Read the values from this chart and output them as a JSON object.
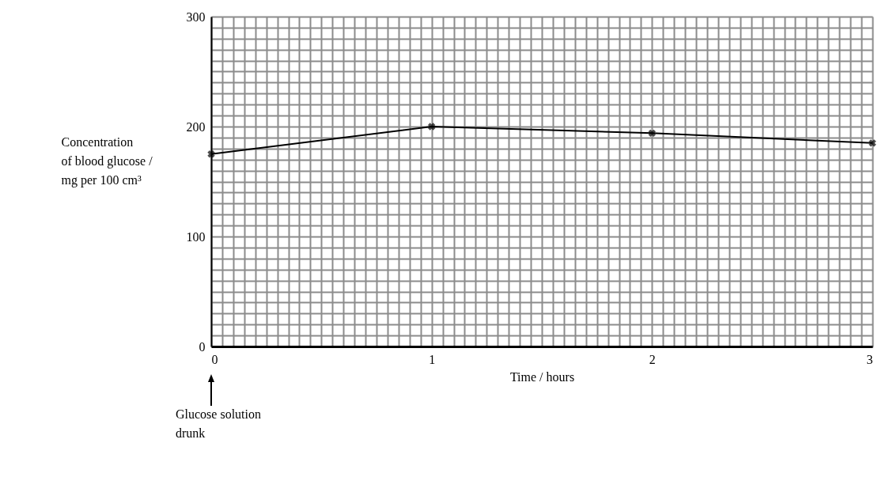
{
  "chart_data": {
    "type": "line",
    "xlabel": "Time / hours",
    "ylabel": "Concentration\nof blood glucose /\nmg per 100 cm³",
    "x": [
      0,
      1,
      2,
      3
    ],
    "series": [
      {
        "color": "#000000",
        "values": [
          175,
          200,
          194,
          185
        ]
      }
    ],
    "xlim": [
      0,
      3
    ],
    "ylim": [
      0,
      300
    ],
    "xticks": [
      0,
      {
        "value": 0.05,
        "label": null
      },
      {
        "value": 0.1,
        "label": null
      },
      {
        "value": 0.15,
        "label": null
      },
      {
        "value": 0.2,
        "label": null
      },
      {
        "value": 0.25,
        "label": null
      },
      {
        "value": 0.3,
        "label": null
      },
      {
        "value": 0.35,
        "label": null
      },
      {
        "value": 0.4,
        "label": null
      },
      {
        "value": 0.45,
        "label": null
      },
      {
        "value": 0.5,
        "label": null
      },
      {
        "value": 0.55,
        "label": null
      },
      {
        "value": 0.6,
        "label": null
      },
      {
        "value": 0.65,
        "label": null
      },
      {
        "value": 0.7,
        "label": null
      },
      {
        "value": 0.75,
        "label": null
      },
      {
        "value": 0.8,
        "label": null
      },
      {
        "value": 0.85,
        "label": null
      },
      {
        "value": 0.9,
        "label": null
      },
      {
        "value": 0.95,
        "label": null
      },
      1,
      {
        "value": 1.05,
        "label": null
      },
      {
        "value": 1.1,
        "label": null
      },
      {
        "value": 1.15,
        "label": null
      },
      {
        "value": 1.2,
        "label": null
      },
      {
        "value": 1.25,
        "label": null
      },
      {
        "value": 1.3,
        "label": null
      },
      {
        "value": 1.35,
        "label": null
      },
      {
        "value": 1.4,
        "label": null
      },
      {
        "value": 1.45,
        "label": null
      },
      {
        "value": 1.5,
        "label": null
      },
      {
        "value": 1.55,
        "label": null
      },
      {
        "value": 1.6,
        "label": null
      },
      {
        "value": 1.65,
        "label": null
      },
      {
        "value": 1.7,
        "label": null
      },
      {
        "value": 1.75,
        "label": null
      },
      {
        "value": 1.8,
        "label": null
      },
      {
        "value": 1.85,
        "label": null
      },
      {
        "value": 1.9,
        "label": null
      },
      {
        "value": 1.95,
        "label": null
      },
      2,
      {
        "value": 2.05,
        "label": null
      },
      {
        "value": 2.1,
        "label": null
      },
      {
        "value": 2.15,
        "label": null
      },
      {
        "value": 2.2,
        "label": null
      },
      {
        "value": 2.25,
        "label": null
      },
      {
        "value": 2.3,
        "label": null
      },
      {
        "value": 2.35,
        "label": null
      },
      {
        "value": 2.4,
        "label": null
      },
      {
        "value": 2.45,
        "label": null
      },
      {
        "value": 2.5,
        "label": null
      },
      {
        "value": 2.55,
        "label": null
      },
      {
        "value": 2.6,
        "label": null
      },
      {
        "value": 2.65,
        "label": null
      },
      {
        "value": 2.7,
        "label": null
      },
      {
        "value": 2.75,
        "label": null
      },
      {
        "value": 2.8,
        "label": null
      },
      {
        "value": 2.85,
        "label": null
      },
      {
        "value": 2.9,
        "label": null
      },
      {
        "value": 2.95,
        "label": null
      },
      3
    ],
    "yticks": [
      0,
      {
        "value": 10,
        "label": null
      },
      {
        "value": 20,
        "label": null
      },
      {
        "value": 30,
        "label": null
      },
      {
        "value": 40,
        "label": null
      },
      {
        "value": 50,
        "label": null
      },
      {
        "value": 60,
        "label": null
      },
      {
        "value": 70,
        "label": null
      },
      {
        "value": 80,
        "label": null
      },
      {
        "value": 90,
        "label": null
      },
      100,
      {
        "value": 110,
        "label": null
      },
      {
        "value": 120,
        "label": null
      },
      {
        "value": 130,
        "label": null
      },
      {
        "value": 140,
        "label": null
      },
      {
        "value": 150,
        "label": null
      },
      {
        "value": 160,
        "label": null
      },
      {
        "value": 170,
        "label": null
      },
      {
        "value": 180,
        "label": null
      },
      {
        "value": 190,
        "label": null
      },
      200,
      {
        "value": 210,
        "label": null
      },
      {
        "value": 220,
        "label": null
      },
      {
        "value": 230,
        "label": null
      },
      {
        "value": 240,
        "label": null
      },
      {
        "value": 250,
        "label": null
      },
      {
        "value": 260,
        "label": null
      },
      {
        "value": 270,
        "label": null
      },
      {
        "value": 280,
        "label": null
      },
      {
        "value": 290,
        "label": null
      },
      300
    ],
    "grid": true,
    "marker": "cross",
    "line_style": "solid",
    "annotations": [
      "Glucose solution drunk"
    ]
  }
}
